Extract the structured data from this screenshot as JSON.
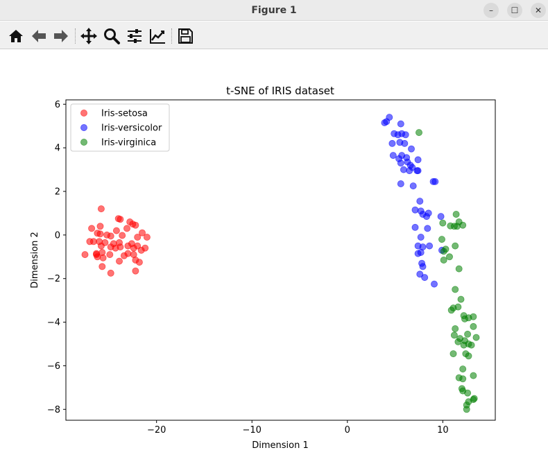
{
  "window": {
    "title": "Figure 1"
  },
  "toolbar": {
    "buttons": [
      "home-icon",
      "back-arrow-icon",
      "forward-arrow-icon",
      "pan-icon",
      "zoom-icon",
      "subplots-icon",
      "edit-axis-icon",
      "save-icon"
    ]
  },
  "chart_data": {
    "type": "scatter",
    "title": "t-SNE of IRIS dataset",
    "xlabel": "Dimension 1",
    "ylabel": "Dimension 2",
    "xlim": [
      -29.5,
      15.5
    ],
    "ylim": [
      -8.5,
      6.2
    ],
    "xticks": [
      -20,
      -10,
      0,
      10
    ],
    "yticks": [
      6,
      4,
      2,
      0,
      -2,
      -4,
      -6,
      -8
    ],
    "grid": false,
    "legend_position": "top-left",
    "series": [
      {
        "name": "Iris-setosa",
        "color": "#ff0000",
        "points": [
          [
            -25.8,
            1.2
          ],
          [
            -24.0,
            0.75
          ],
          [
            -23.8,
            0.72
          ],
          [
            -22.8,
            0.6
          ],
          [
            -22.5,
            0.5
          ],
          [
            -22.2,
            0.45
          ],
          [
            -26.8,
            0.3
          ],
          [
            -25.9,
            0.4
          ],
          [
            -24.2,
            0.2
          ],
          [
            -23.1,
            0.3
          ],
          [
            -21.5,
            0.1
          ],
          [
            -26.2,
            0.08
          ],
          [
            -25.9,
            0.05
          ],
          [
            -24.8,
            -0.05
          ],
          [
            -23.6,
            -0.02
          ],
          [
            -22.0,
            -0.1
          ],
          [
            -21.0,
            -0.1
          ],
          [
            -26.6,
            -0.3
          ],
          [
            -26.0,
            -0.3
          ],
          [
            -25.4,
            -0.35
          ],
          [
            -23.9,
            -0.35
          ],
          [
            -22.6,
            -0.4
          ],
          [
            -22.0,
            -0.5
          ],
          [
            -21.2,
            -0.6
          ],
          [
            -25.8,
            -0.5
          ],
          [
            -24.8,
            -0.55
          ],
          [
            -24.3,
            -0.6
          ],
          [
            -23.8,
            -0.55
          ],
          [
            -23.0,
            -0.5
          ],
          [
            -22.4,
            -0.6
          ],
          [
            -21.6,
            -0.7
          ],
          [
            -27.5,
            -0.9
          ],
          [
            -26.3,
            -0.85
          ],
          [
            -25.7,
            -0.8
          ],
          [
            -24.9,
            -0.9
          ],
          [
            -23.4,
            -0.95
          ],
          [
            -22.4,
            -0.9
          ],
          [
            -26.2,
            -1.0
          ],
          [
            -25.6,
            -1.05
          ],
          [
            -23.9,
            -1.2
          ],
          [
            -22.2,
            -1.15
          ],
          [
            -21.8,
            -1.25
          ],
          [
            -25.7,
            -1.45
          ],
          [
            -24.8,
            -1.75
          ],
          [
            -22.2,
            -1.65
          ],
          [
            -26.3,
            -0.9
          ],
          [
            -27.0,
            -0.3
          ],
          [
            -24.5,
            -0.4
          ],
          [
            -23.0,
            -0.85
          ],
          [
            -25.2,
            0.0
          ]
        ]
      },
      {
        "name": "Iris-versicolor",
        "color": "#0000ff",
        "points": [
          [
            4.4,
            5.4
          ],
          [
            4.1,
            5.2
          ],
          [
            3.9,
            5.15
          ],
          [
            5.6,
            5.1
          ],
          [
            4.9,
            4.65
          ],
          [
            5.3,
            4.6
          ],
          [
            5.7,
            4.65
          ],
          [
            6.1,
            4.6
          ],
          [
            4.7,
            4.2
          ],
          [
            5.5,
            4.25
          ],
          [
            6.0,
            4.2
          ],
          [
            6.7,
            3.95
          ],
          [
            4.8,
            3.65
          ],
          [
            5.7,
            3.65
          ],
          [
            5.4,
            3.5
          ],
          [
            6.2,
            3.55
          ],
          [
            7.4,
            3.45
          ],
          [
            5.6,
            3.3
          ],
          [
            6.3,
            3.35
          ],
          [
            6.6,
            3.2
          ],
          [
            6.8,
            3.1
          ],
          [
            5.9,
            3.0
          ],
          [
            6.5,
            2.95
          ],
          [
            7.3,
            2.95
          ],
          [
            7.4,
            2.95
          ],
          [
            9.0,
            2.45
          ],
          [
            9.2,
            2.45
          ],
          [
            5.6,
            2.35
          ],
          [
            6.9,
            2.25
          ],
          [
            7.6,
            1.55
          ],
          [
            7.7,
            1.1
          ],
          [
            7.1,
            1.15
          ],
          [
            7.9,
            0.95
          ],
          [
            8.3,
            0.85
          ],
          [
            8.5,
            1.0
          ],
          [
            9.8,
            0.85
          ],
          [
            7.1,
            0.35
          ],
          [
            8.4,
            0.3
          ],
          [
            7.7,
            -0.1
          ],
          [
            7.4,
            -0.5
          ],
          [
            7.9,
            -0.55
          ],
          [
            8.6,
            -0.5
          ],
          [
            7.4,
            -0.85
          ],
          [
            7.7,
            -0.8
          ],
          [
            9.9,
            -0.7
          ],
          [
            7.8,
            -1.3
          ],
          [
            7.9,
            -1.45
          ],
          [
            7.6,
            -1.8
          ],
          [
            8.1,
            -1.95
          ],
          [
            9.1,
            -2.25
          ]
        ]
      },
      {
        "name": "Iris-virginica",
        "color": "#008000",
        "points": [
          [
            7.5,
            4.7
          ],
          [
            11.4,
            0.95
          ],
          [
            11.7,
            0.6
          ],
          [
            10.0,
            0.55
          ],
          [
            11.2,
            0.4
          ],
          [
            11.5,
            0.4
          ],
          [
            12.1,
            0.45
          ],
          [
            10.8,
            0.42
          ],
          [
            9.9,
            -0.2
          ],
          [
            10.3,
            -0.65
          ],
          [
            11.3,
            -0.5
          ],
          [
            10.1,
            -0.75
          ],
          [
            10.7,
            -1.0
          ],
          [
            10.1,
            -1.15
          ],
          [
            11.7,
            -1.55
          ],
          [
            11.3,
            -2.5
          ],
          [
            11.9,
            -2.95
          ],
          [
            11.6,
            -3.3
          ],
          [
            11.1,
            -3.35
          ],
          [
            10.9,
            -3.45
          ],
          [
            12.2,
            -3.7
          ],
          [
            13.2,
            -3.75
          ],
          [
            12.3,
            -3.85
          ],
          [
            12.7,
            -3.8
          ],
          [
            13.2,
            -4.2
          ],
          [
            11.3,
            -4.3
          ],
          [
            12.6,
            -4.55
          ],
          [
            11.2,
            -4.6
          ],
          [
            13.5,
            -4.7
          ],
          [
            11.8,
            -4.75
          ],
          [
            12.3,
            -4.85
          ],
          [
            11.6,
            -4.9
          ],
          [
            12.7,
            -5.0
          ],
          [
            12.2,
            -5.05
          ],
          [
            13.0,
            -5.05
          ],
          [
            11.1,
            -5.45
          ],
          [
            12.4,
            -5.45
          ],
          [
            12.7,
            -5.55
          ],
          [
            12.1,
            -6.15
          ],
          [
            13.2,
            -6.45
          ],
          [
            11.7,
            -6.55
          ],
          [
            12.1,
            -6.6
          ],
          [
            12.0,
            -7.05
          ],
          [
            12.1,
            -7.15
          ],
          [
            12.6,
            -7.25
          ],
          [
            13.3,
            -7.5
          ],
          [
            13.2,
            -7.55
          ],
          [
            12.7,
            -7.65
          ],
          [
            12.5,
            -7.8
          ],
          [
            12.5,
            -8.0
          ]
        ]
      }
    ]
  }
}
